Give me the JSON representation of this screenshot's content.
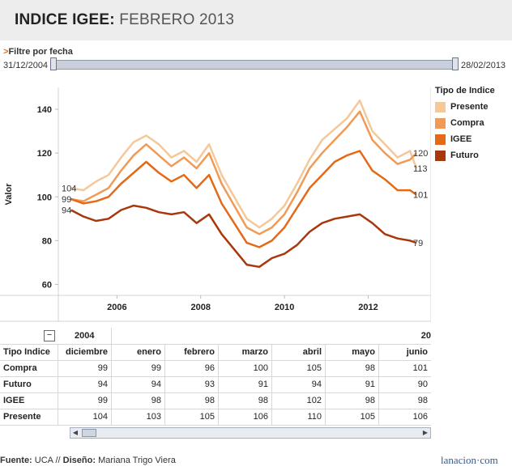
{
  "header": {
    "title_bold": "INDICE IGEE:",
    "title_light": "FEBRERO 2013"
  },
  "filter": {
    "arrow": ">",
    "label": "Filtre por fecha",
    "start": "31/12/2004",
    "end": "28/02/2013"
  },
  "legend": {
    "title": "Tipo de Indice",
    "items": [
      {
        "label": "Presente",
        "color": "#f5c89a"
      },
      {
        "label": "Compra",
        "color": "#f19a55"
      },
      {
        "label": "IGEE",
        "color": "#e46a18"
      },
      {
        "label": "Futuro",
        "color": "#a8380c"
      }
    ]
  },
  "chart_data": {
    "type": "line",
    "ylabel": "Valor",
    "xlabel": "",
    "ylim": [
      55,
      150
    ],
    "xlim": [
      2004.6,
      2013.5
    ],
    "yticks": [
      60,
      80,
      100,
      120,
      140
    ],
    "xticks": [
      2006,
      2008,
      2010,
      2012
    ],
    "grid": false,
    "legend_position": "right",
    "start_labels": [
      {
        "text": "104",
        "y": 104
      },
      {
        "text": "99",
        "y": 99
      },
      {
        "text": "94",
        "y": 94
      }
    ],
    "end_labels": [
      {
        "text": "120",
        "y": 120
      },
      {
        "text": "113",
        "y": 113
      },
      {
        "text": "101",
        "y": 101
      },
      {
        "text": "79",
        "y": 79
      }
    ],
    "series": [
      {
        "name": "Presente",
        "color": "#f5c89a",
        "x": [
          2004.9,
          2005.2,
          2005.5,
          2005.8,
          2006.1,
          2006.4,
          2006.7,
          2007.0,
          2007.3,
          2007.6,
          2007.9,
          2008.2,
          2008.5,
          2008.8,
          2009.1,
          2009.4,
          2009.7,
          2010.0,
          2010.3,
          2010.6,
          2010.9,
          2011.2,
          2011.5,
          2011.8,
          2012.1,
          2012.4,
          2012.7,
          2013.0,
          2013.15
        ],
        "y": [
          104,
          103,
          107,
          110,
          118,
          125,
          128,
          124,
          118,
          121,
          116,
          124,
          110,
          100,
          90,
          86,
          90,
          96,
          106,
          117,
          126,
          131,
          136,
          144,
          130,
          124,
          118,
          121,
          113
        ]
      },
      {
        "name": "Compra",
        "color": "#f19a55",
        "x": [
          2004.9,
          2005.2,
          2005.5,
          2005.8,
          2006.1,
          2006.4,
          2006.7,
          2007.0,
          2007.3,
          2007.6,
          2007.9,
          2008.2,
          2008.5,
          2008.8,
          2009.1,
          2009.4,
          2009.7,
          2010.0,
          2010.3,
          2010.6,
          2010.9,
          2011.2,
          2011.5,
          2011.8,
          2012.1,
          2012.4,
          2012.7,
          2013.0,
          2013.15
        ],
        "y": [
          99,
          98,
          101,
          104,
          112,
          119,
          124,
          119,
          114,
          118,
          113,
          120,
          106,
          96,
          86,
          83,
          86,
          92,
          102,
          113,
          120,
          126,
          132,
          139,
          126,
          120,
          115,
          117,
          120
        ]
      },
      {
        "name": "IGEE",
        "color": "#e46a18",
        "x": [
          2004.9,
          2005.2,
          2005.5,
          2005.8,
          2006.1,
          2006.4,
          2006.7,
          2007.0,
          2007.3,
          2007.6,
          2007.9,
          2008.2,
          2008.5,
          2008.8,
          2009.1,
          2009.4,
          2009.7,
          2010.0,
          2010.3,
          2010.6,
          2010.9,
          2011.2,
          2011.5,
          2011.8,
          2012.1,
          2012.4,
          2012.7,
          2013.0,
          2013.15
        ],
        "y": [
          99,
          97,
          98,
          100,
          106,
          111,
          116,
          111,
          107,
          110,
          104,
          110,
          97,
          88,
          79,
          77,
          80,
          86,
          95,
          104,
          110,
          116,
          119,
          121,
          112,
          108,
          103,
          103,
          101
        ]
      },
      {
        "name": "Futuro",
        "color": "#a8380c",
        "x": [
          2004.9,
          2005.2,
          2005.5,
          2005.8,
          2006.1,
          2006.4,
          2006.7,
          2007.0,
          2007.3,
          2007.6,
          2007.9,
          2008.2,
          2008.5,
          2008.8,
          2009.1,
          2009.4,
          2009.7,
          2010.0,
          2010.3,
          2010.6,
          2010.9,
          2011.2,
          2011.5,
          2011.8,
          2012.1,
          2012.4,
          2012.7,
          2013.0,
          2013.15
        ],
        "y": [
          94,
          91,
          89,
          90,
          94,
          96,
          95,
          93,
          92,
          93,
          88,
          92,
          83,
          76,
          69,
          68,
          72,
          74,
          78,
          84,
          88,
          90,
          91,
          92,
          88,
          83,
          81,
          80,
          79
        ]
      }
    ]
  },
  "table": {
    "toggle": "−",
    "year_left": "2004",
    "year_right": "20",
    "row_header": "Tipo Indice",
    "columns": [
      "diciembre",
      "enero",
      "febrero",
      "marzo",
      "abril",
      "mayo",
      "junio"
    ],
    "rows": [
      {
        "label": "Compra",
        "values": [
          "99",
          "99",
          "96",
          "100",
          "105",
          "98",
          "101"
        ]
      },
      {
        "label": "Futuro",
        "values": [
          "94",
          "94",
          "93",
          "91",
          "94",
          "91",
          "90"
        ]
      },
      {
        "label": "IGEE",
        "values": [
          "99",
          "98",
          "98",
          "98",
          "102",
          "98",
          "98"
        ]
      },
      {
        "label": "Presente",
        "values": [
          "104",
          "103",
          "105",
          "106",
          "110",
          "105",
          "106"
        ]
      }
    ]
  },
  "footer": {
    "fuente_label": "Fuente:",
    "fuente": "UCA",
    "sep": "//",
    "diseno_label": "Diseño:",
    "diseno": "Mariana Trigo Viera"
  },
  "brand": "lanacion·com"
}
